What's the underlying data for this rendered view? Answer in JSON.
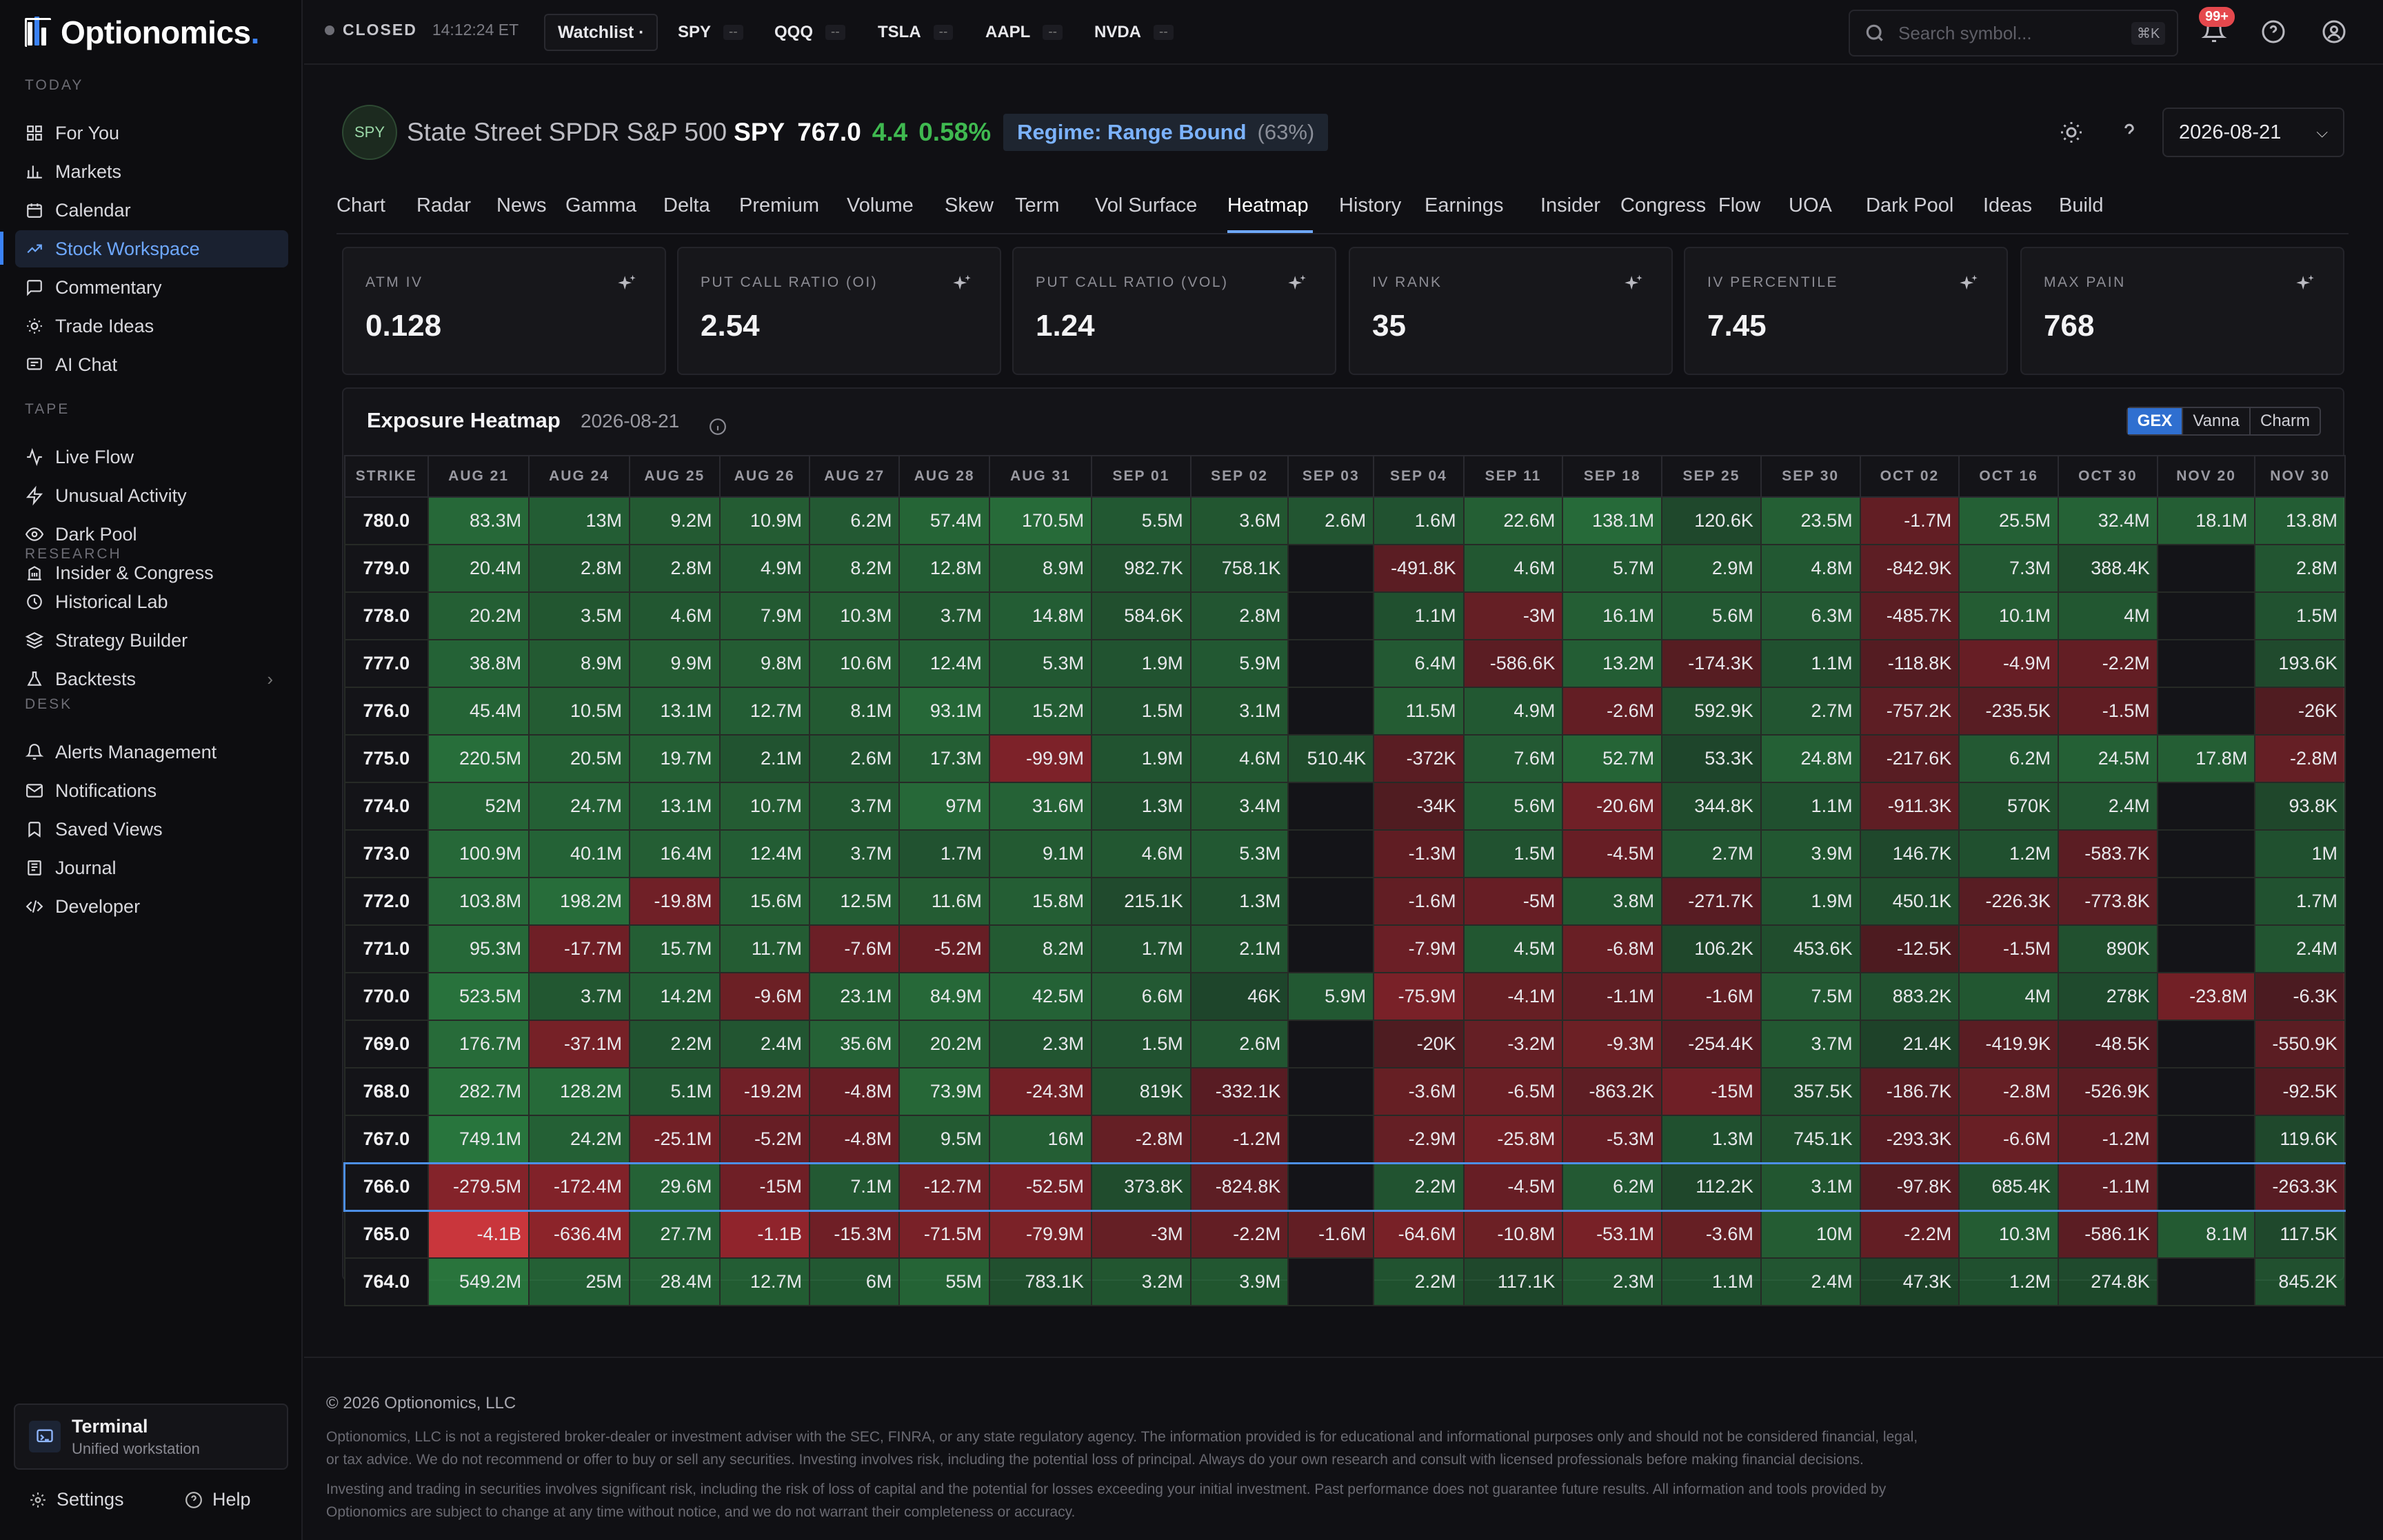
{
  "brand": {
    "name": "Optionomics",
    "dot": "."
  },
  "sidebar": {
    "sections": [
      {
        "title": "TODAY",
        "items": [
          {
            "label": "For You",
            "icon": "grid-icon"
          },
          {
            "label": "Markets",
            "icon": "bar-chart-icon"
          },
          {
            "label": "Calendar",
            "icon": "calendar-icon"
          },
          {
            "label": "Stock Workspace",
            "icon": "trending-icon",
            "active": true
          },
          {
            "label": "Commentary",
            "icon": "chat-icon"
          },
          {
            "label": "Trade Ideas",
            "icon": "lightbulb-icon"
          },
          {
            "label": "AI Chat",
            "icon": "message-icon"
          }
        ]
      },
      {
        "title": "TAPE",
        "items": [
          {
            "label": "Live Flow",
            "icon": "activity-icon"
          },
          {
            "label": "Unusual Activity",
            "icon": "zap-icon"
          },
          {
            "label": "Dark Pool",
            "icon": "eye-icon"
          },
          {
            "label": "Insider & Congress",
            "icon": "building-icon"
          }
        ]
      },
      {
        "title": "RESEARCH",
        "items": [
          {
            "label": "Historical Lab",
            "icon": "history-icon"
          },
          {
            "label": "Strategy Builder",
            "icon": "layers-icon"
          },
          {
            "label": "Backtests",
            "icon": "flask-icon"
          }
        ]
      },
      {
        "title": "DESK",
        "items": [
          {
            "label": "Alerts Management",
            "icon": "bell-icon"
          },
          {
            "label": "Notifications",
            "icon": "mail-icon"
          },
          {
            "label": "Saved Views",
            "icon": "bookmark-icon"
          },
          {
            "label": "Journal",
            "icon": "book-icon"
          },
          {
            "label": "Developer",
            "icon": "code-icon"
          }
        ]
      }
    ],
    "terminal": {
      "title": "Terminal",
      "subtitle": "Unified workstation"
    },
    "settings_label": "Settings",
    "help_label": "Help"
  },
  "topbar": {
    "market_status": "CLOSED",
    "market_time": "14:12:24 ET",
    "watchlist_label": "Watchlist ·",
    "tickers": [
      {
        "symbol": "SPY",
        "value": "--"
      },
      {
        "symbol": "QQQ",
        "value": "--"
      },
      {
        "symbol": "TSLA",
        "value": "--"
      },
      {
        "symbol": "AAPL",
        "value": "--"
      },
      {
        "symbol": "NVDA",
        "value": "--"
      }
    ],
    "search_placeholder": "Search symbol...",
    "search_shortcut": "⌘K",
    "notification_count": "99+"
  },
  "header": {
    "symbol_badge": "SPY",
    "company": "State Street SPDR S&P 500",
    "symbol": "SPY",
    "price": "767.0",
    "change": "4.4",
    "change_pct": "0.58%",
    "regime": "Regime: Range Bound",
    "regime_pct": "(63%)",
    "date": "2026-08-21",
    "change_color": "#3fb950",
    "regime_color": "#7cb3ff"
  },
  "tabs": [
    "Chart",
    "Radar",
    "News",
    "Gamma",
    "Delta",
    "Premium",
    "Volume",
    "Skew",
    "Term",
    "Vol Surface",
    "Heatmap",
    "History",
    "Earnings",
    "Insider",
    "Congress",
    "Flow",
    "UOA",
    "Dark Pool",
    "Ideas",
    "Build"
  ],
  "active_tab": "Heatmap",
  "stats": [
    {
      "label": "ATM IV",
      "value": "0.128"
    },
    {
      "label": "PUT CALL RATIO (OI)",
      "value": "2.54"
    },
    {
      "label": "PUT CALL RATIO (VOL)",
      "value": "1.24"
    },
    {
      "label": "IV RANK",
      "value": "35"
    },
    {
      "label": "IV PERCENTILE",
      "value": "7.45"
    },
    {
      "label": "MAX PAIN",
      "value": "768"
    }
  ],
  "heatmap": {
    "title": "Exposure Heatmap",
    "date": "2026-08-21",
    "modes": [
      "GEX",
      "Vanna",
      "Charm"
    ],
    "active_mode": "GEX",
    "selected_strike": "766.0",
    "columns": [
      "STRIKE",
      "AUG 21",
      "AUG 24",
      "AUG 25",
      "AUG 26",
      "AUG 27",
      "AUG 28",
      "AUG 31",
      "SEP 01",
      "SEP 02",
      "SEP 03",
      "SEP 04",
      "SEP 11",
      "SEP 18",
      "SEP 25",
      "SEP 30",
      "OCT 02",
      "OCT 16",
      "OCT 30",
      "NOV 20",
      "NOV 30"
    ],
    "rows": [
      [
        "780.0",
        "83.3M",
        "13M",
        "9.2M",
        "10.9M",
        "6.2M",
        "57.4M",
        "170.5M",
        "5.5M",
        "3.6M",
        "2.6M",
        "1.6M",
        "22.6M",
        "138.1M",
        "120.6K",
        "23.5M",
        "-1.7M",
        "25.5M",
        "32.4M",
        "18.1M",
        "13.8M"
      ],
      [
        "779.0",
        "20.4M",
        "2.8M",
        "2.8M",
        "4.9M",
        "8.2M",
        "12.8M",
        "8.9M",
        "982.7K",
        "758.1K",
        "",
        "-491.8K",
        "4.6M",
        "5.7M",
        "2.9M",
        "4.8M",
        "-842.9K",
        "7.3M",
        "388.4K",
        "",
        "2.8M"
      ],
      [
        "778.0",
        "20.2M",
        "3.5M",
        "4.6M",
        "7.9M",
        "10.3M",
        "3.7M",
        "14.8M",
        "584.6K",
        "2.8M",
        "",
        "1.1M",
        "-3M",
        "16.1M",
        "5.6M",
        "6.3M",
        "-485.7K",
        "10.1M",
        "4M",
        "",
        "1.5M"
      ],
      [
        "777.0",
        "38.8M",
        "8.9M",
        "9.9M",
        "9.8M",
        "10.6M",
        "12.4M",
        "5.3M",
        "1.9M",
        "5.9M",
        "",
        "6.4M",
        "-586.6K",
        "13.2M",
        "-174.3K",
        "1.1M",
        "-118.8K",
        "-4.9M",
        "-2.2M",
        "",
        "193.6K"
      ],
      [
        "776.0",
        "45.4M",
        "10.5M",
        "13.1M",
        "12.7M",
        "8.1M",
        "93.1M",
        "15.2M",
        "1.5M",
        "3.1M",
        "",
        "11.5M",
        "4.9M",
        "-2.6M",
        "592.9K",
        "2.7M",
        "-757.2K",
        "-235.5K",
        "-1.5M",
        "",
        "-26K"
      ],
      [
        "775.0",
        "220.5M",
        "20.5M",
        "19.7M",
        "2.1M",
        "2.6M",
        "17.3M",
        "-99.9M",
        "1.9M",
        "4.6M",
        "510.4K",
        "-372K",
        "7.6M",
        "52.7M",
        "53.3K",
        "24.8M",
        "-217.6K",
        "6.2M",
        "24.5M",
        "17.8M",
        "-2.8M"
      ],
      [
        "774.0",
        "52M",
        "24.7M",
        "13.1M",
        "10.7M",
        "3.7M",
        "97M",
        "31.6M",
        "1.3M",
        "3.4M",
        "",
        "-34K",
        "5.6M",
        "-20.6M",
        "344.8K",
        "1.1M",
        "-911.3K",
        "570K",
        "2.4M",
        "",
        "93.8K"
      ],
      [
        "773.0",
        "100.9M",
        "40.1M",
        "16.4M",
        "12.4M",
        "3.7M",
        "1.7M",
        "9.1M",
        "4.6M",
        "5.3M",
        "",
        "-1.3M",
        "1.5M",
        "-4.5M",
        "2.7M",
        "3.9M",
        "146.7K",
        "1.2M",
        "-583.7K",
        "",
        "1M"
      ],
      [
        "772.0",
        "103.8M",
        "198.2M",
        "-19.8M",
        "15.6M",
        "12.5M",
        "11.6M",
        "15.8M",
        "215.1K",
        "1.3M",
        "",
        "-1.6M",
        "-5M",
        "3.8M",
        "-271.7K",
        "1.9M",
        "450.1K",
        "-226.3K",
        "-773.8K",
        "",
        "1.7M"
      ],
      [
        "771.0",
        "95.3M",
        "-17.7M",
        "15.7M",
        "11.7M",
        "-7.6M",
        "-5.2M",
        "8.2M",
        "1.7M",
        "2.1M",
        "",
        "-7.9M",
        "4.5M",
        "-6.8M",
        "106.2K",
        "453.6K",
        "-12.5K",
        "-1.5M",
        "890K",
        "",
        "2.4M"
      ],
      [
        "770.0",
        "523.5M",
        "3.7M",
        "14.2M",
        "-9.6M",
        "23.1M",
        "84.9M",
        "42.5M",
        "6.6M",
        "46K",
        "5.9M",
        "-75.9M",
        "-4.1M",
        "-1.1M",
        "-1.6M",
        "7.5M",
        "883.2K",
        "4M",
        "278K",
        "-23.8M",
        "-6.3K"
      ],
      [
        "769.0",
        "176.7M",
        "-37.1M",
        "2.2M",
        "2.4M",
        "35.6M",
        "20.2M",
        "2.3M",
        "1.5M",
        "2.6M",
        "",
        "-20K",
        "-3.2M",
        "-9.3M",
        "-254.4K",
        "3.7M",
        "21.4K",
        "-419.9K",
        "-48.5K",
        "",
        "-550.9K"
      ],
      [
        "768.0",
        "282.7M",
        "128.2M",
        "5.1M",
        "-19.2M",
        "-4.8M",
        "73.9M",
        "-24.3M",
        "819K",
        "-332.1K",
        "",
        "-3.6M",
        "-6.5M",
        "-863.2K",
        "-15M",
        "357.5K",
        "-186.7K",
        "-2.8M",
        "-526.9K",
        "",
        "-92.5K"
      ],
      [
        "767.0",
        "749.1M",
        "24.2M",
        "-25.1M",
        "-5.2M",
        "-4.8M",
        "9.5M",
        "16M",
        "-2.8M",
        "-1.2M",
        "",
        "-2.9M",
        "-25.8M",
        "-5.3M",
        "1.3M",
        "745.1K",
        "-293.3K",
        "-6.6M",
        "-1.2M",
        "",
        "119.6K"
      ],
      [
        "766.0",
        "-279.5M",
        "-172.4M",
        "29.6M",
        "-15M",
        "7.1M",
        "-12.7M",
        "-52.5M",
        "373.8K",
        "-824.8K",
        "",
        "2.2M",
        "-4.5M",
        "6.2M",
        "112.2K",
        "3.1M",
        "-97.8K",
        "685.4K",
        "-1.1M",
        "",
        "-263.3K"
      ],
      [
        "765.0",
        "-4.1B",
        "-636.4M",
        "27.7M",
        "-1.1B",
        "-15.3M",
        "-71.5M",
        "-79.9M",
        "-3M",
        "-2.2M",
        "-1.6M",
        "-64.6M",
        "-10.8M",
        "-53.1M",
        "-3.6M",
        "10M",
        "-2.2M",
        "10.3M",
        "-586.1K",
        "8.1M",
        "117.5K"
      ],
      [
        "764.0",
        "549.2M",
        "25M",
        "28.4M",
        "12.7M",
        "6M",
        "55M",
        "783.1K",
        "3.2M",
        "3.9M",
        "",
        "2.2M",
        "117.1K",
        "2.3M",
        "1.1M",
        "2.4M",
        "47.3K",
        "1.2M",
        "274.8K",
        "",
        "845.2K"
      ]
    ],
    "colors": {
      "positive": "#1e6b34",
      "negative": "#7a1f24",
      "empty": "#141418"
    }
  },
  "footer": {
    "copyright": "© 2026 Optionomics, LLC",
    "disclaimer1": "Optionomics, LLC is not a registered broker-dealer or investment adviser with the SEC, FINRA, or any state regulatory agency. The information provided is for educational and informational purposes only and should not be considered financial, legal, or tax advice. We do not recommend or offer to buy or sell any securities. Investing involves risk, including the potential loss of principal. Always do your own research and consult with licensed professionals before making financial decisions.",
    "disclaimer2": "Investing and trading in securities involves significant risk, including the risk of loss of capital and the potential for losses exceeding your initial investment. Past performance does not guarantee future results. All information and tools provided by Optionomics are subject to change at any time without notice, and we do not warrant their completeness or accuracy."
  }
}
